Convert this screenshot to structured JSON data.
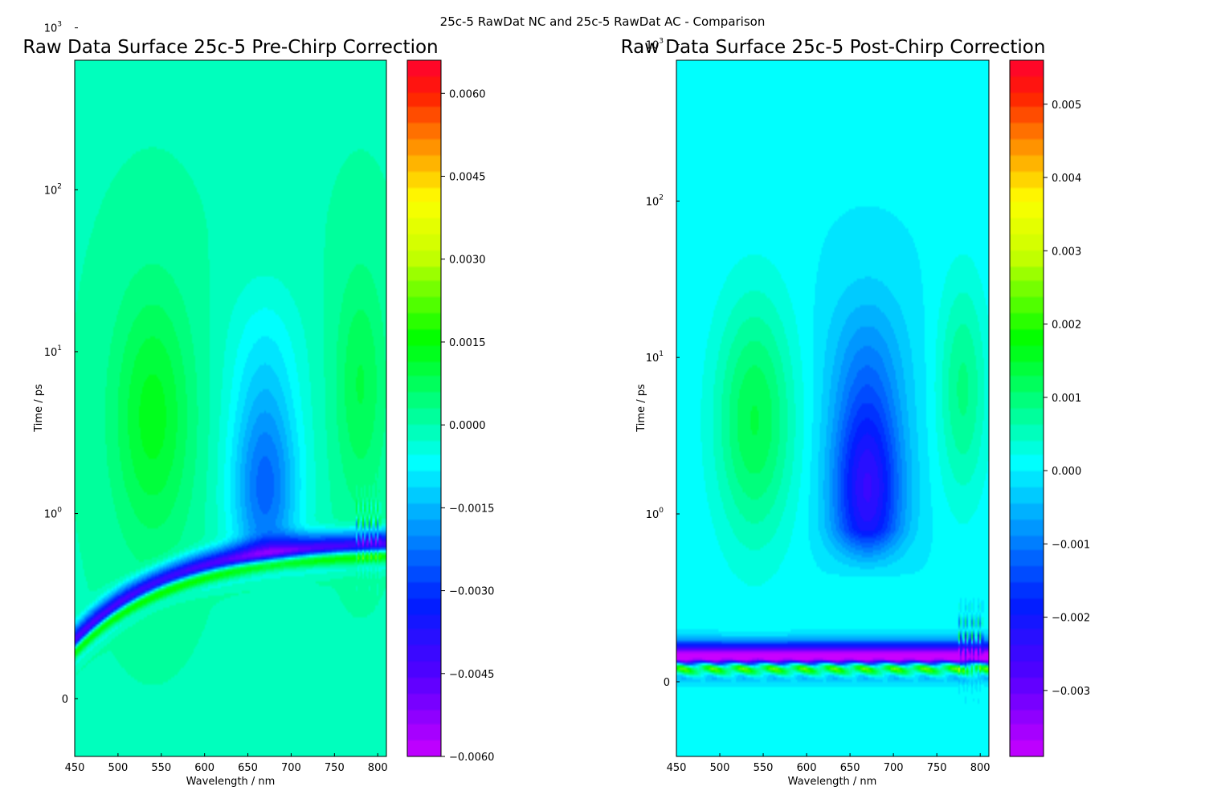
{
  "figure_title": "25c-5 RawDat NC and 25c-5 RawDat AC - Comparison",
  "chart_data": [
    {
      "type": "heatmap",
      "title": "Raw Data Surface 25c-5 Pre-Chirp Correction",
      "xlabel": "Wavelength / nm",
      "ylabel": "Time / ps",
      "xlim": [
        450,
        810
      ],
      "xticks": [
        450,
        500,
        550,
        600,
        650,
        700,
        750,
        800
      ],
      "yscale": "symlog",
      "yticks": [
        {
          "value": 0,
          "label": "0"
        },
        {
          "value": 1,
          "label": "10",
          "exp": "0"
        },
        {
          "value": 10,
          "label": "10",
          "exp": "1"
        },
        {
          "value": 100,
          "label": "10",
          "exp": "2"
        },
        {
          "value": 1000,
          "label": "10",
          "exp": "3"
        }
      ],
      "colorbar": {
        "vmin": -0.006,
        "vmax": 0.0066,
        "ticks": [
          -0.006,
          -0.0045,
          -0.003,
          -0.0015,
          0.0,
          0.0015,
          0.003,
          0.0045,
          0.006
        ],
        "tick_labels": [
          "−0.0060",
          "−0.0045",
          "−0.0030",
          "−0.0015",
          "0.0000",
          "0.0015",
          "0.0030",
          "0.0045",
          "0.0060"
        ]
      },
      "colormap": "hsv",
      "features": [
        {
          "kind": "positive-band",
          "center_nm": 540,
          "time_ps": 5,
          "amplitude": 0.0013
        },
        {
          "kind": "negative-band",
          "center_nm": 670,
          "time_ps": 1.5,
          "amplitude": -0.0026
        },
        {
          "kind": "positive-band",
          "center_nm": 775,
          "time_ps": 10,
          "amplitude": 0.0008
        },
        {
          "kind": "coherent-artifact",
          "chirped": true,
          "onset_ps_at_450nm": 0.35,
          "onset_ps_at_810nm": 1.1
        }
      ]
    },
    {
      "type": "heatmap",
      "title": "Raw Data Surface 25c-5 Post-Chirp Correction",
      "xlabel": "Wavelength / nm",
      "ylabel": "Time / ps",
      "xlim": [
        450,
        810
      ],
      "xticks": [
        450,
        500,
        550,
        600,
        650,
        700,
        750,
        800
      ],
      "yscale": "symlog",
      "yticks": [
        {
          "value": 0,
          "label": "0"
        },
        {
          "value": 1,
          "label": "10",
          "exp": "0"
        },
        {
          "value": 10,
          "label": "10",
          "exp": "1"
        },
        {
          "value": 100,
          "label": "10",
          "exp": "2"
        },
        {
          "value": 1000,
          "label": "10",
          "exp": "3"
        }
      ],
      "colorbar": {
        "vmin": -0.0039,
        "vmax": 0.0056,
        "ticks": [
          -0.003,
          -0.002,
          -0.001,
          0.0,
          0.001,
          0.002,
          0.003,
          0.004,
          0.005
        ],
        "tick_labels": [
          "−0.003",
          "−0.002",
          "−0.001",
          "0.000",
          "0.001",
          "0.002",
          "0.003",
          "0.004",
          "0.005"
        ]
      },
      "colormap": "hsv",
      "features": [
        {
          "kind": "positive-band",
          "center_nm": 540,
          "time_ps": 4,
          "amplitude": 0.0012
        },
        {
          "kind": "negative-band",
          "center_nm": 670,
          "time_ps": 1.2,
          "amplitude": -0.0028
        },
        {
          "kind": "positive-band",
          "center_nm": 775,
          "time_ps": 10,
          "amplitude": 0.0008
        },
        {
          "kind": "coherent-artifact",
          "chirped": false,
          "onset_ps": 0.2
        }
      ]
    }
  ]
}
